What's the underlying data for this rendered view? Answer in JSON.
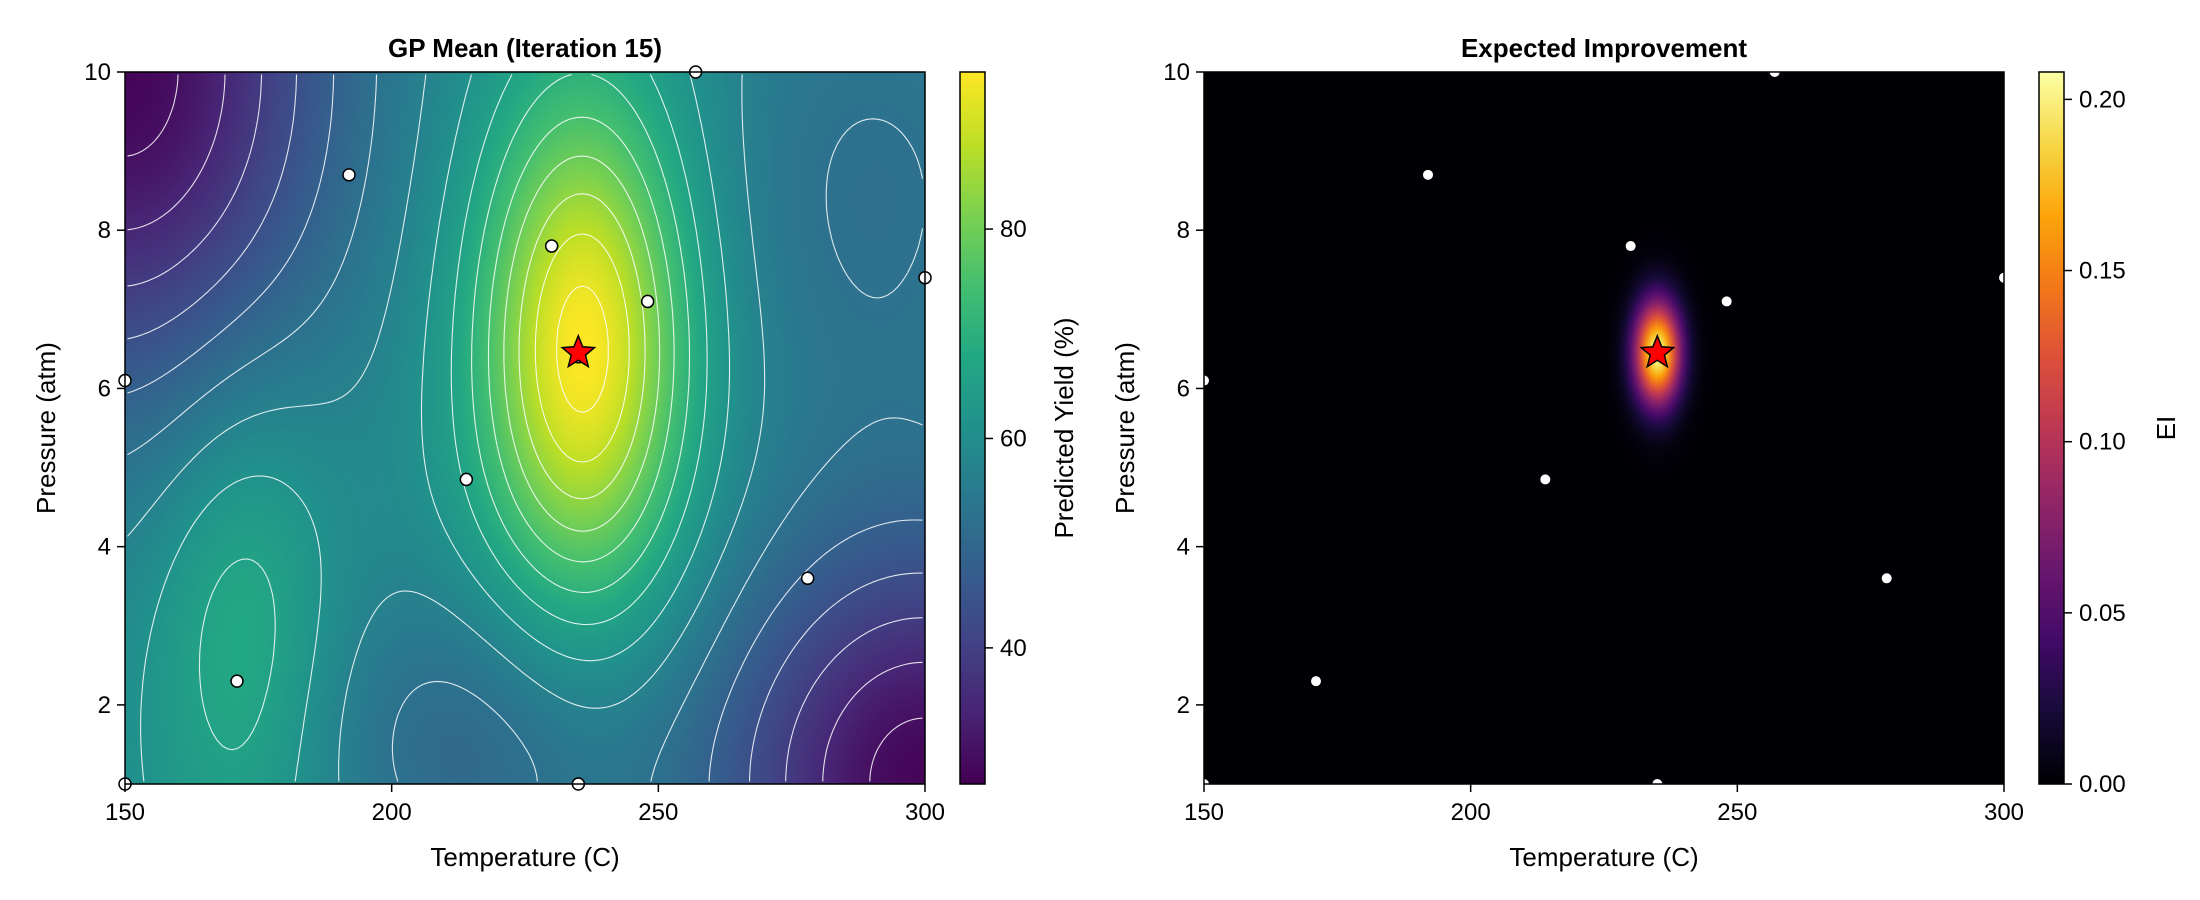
{
  "chart_data": [
    {
      "type": "heatmap",
      "title": "GP Mean (Iteration 15)",
      "xlabel": "Temperature (C)",
      "ylabel": "Pressure (atm)",
      "xlim": [
        150,
        300
      ],
      "ylim": [
        1,
        10
      ],
      "xticks": [
        150,
        200,
        250,
        300
      ],
      "yticks": [
        2,
        4,
        6,
        8,
        10
      ],
      "colormap": "viridis",
      "colorbar": {
        "label": "Predicted Yield (%)",
        "range": [
          27,
          95
        ],
        "ticks": [
          40,
          60,
          80
        ]
      },
      "contours": "white",
      "surface": {
        "baseline": 60,
        "bumps": [
          {
            "center": [
              236,
              6.5
            ],
            "amplitude": 36,
            "spread": [
              14,
              2.3
            ]
          },
          {
            "center": [
              172,
              3.0
            ],
            "amplitude": 10,
            "spread": [
              12,
              2.2
            ]
          },
          {
            "center": [
              150,
              10
            ],
            "amplitude": -32,
            "spread": [
              28,
              3.0
            ]
          },
          {
            "center": [
              300,
              1
            ],
            "amplitude": -32,
            "spread": [
              28,
              2.2
            ]
          },
          {
            "center": [
              215,
              1.5
            ],
            "amplitude": -10,
            "spread": [
              22,
              1.5
            ]
          },
          {
            "center": [
              290,
              8.5
            ],
            "amplitude": -8,
            "spread": [
              25,
              2.5
            ]
          }
        ]
      },
      "observations": [
        {
          "x": 150,
          "y": 1.0
        },
        {
          "x": 150,
          "y": 6.1
        },
        {
          "x": 171,
          "y": 2.3
        },
        {
          "x": 192,
          "y": 8.7
        },
        {
          "x": 214,
          "y": 4.85
        },
        {
          "x": 230,
          "y": 7.8
        },
        {
          "x": 235,
          "y": 1.0
        },
        {
          "x": 235,
          "y": 6.4
        },
        {
          "x": 248,
          "y": 7.1
        },
        {
          "x": 257,
          "y": 10.0
        },
        {
          "x": 278,
          "y": 3.6
        },
        {
          "x": 300,
          "y": 7.4
        }
      ],
      "next_point": {
        "x": 235,
        "y": 6.45,
        "color": "#ff0000"
      }
    },
    {
      "type": "heatmap",
      "title": "Expected Improvement",
      "xlabel": "Temperature (C)",
      "ylabel": "Pressure (atm)",
      "xlim": [
        150,
        300
      ],
      "ylim": [
        1,
        10
      ],
      "xticks": [
        150,
        200,
        250,
        300
      ],
      "yticks": [
        2,
        4,
        6,
        8,
        10
      ],
      "colormap": "inferno",
      "colorbar": {
        "label": "EI",
        "range": [
          0.0,
          0.208
        ],
        "ticks": [
          "0.00",
          "0.05",
          "0.10",
          "0.15",
          "0.20"
        ]
      },
      "surface": {
        "baseline": 0,
        "bumps": [
          {
            "center": [
              235,
              6.45
            ],
            "amplitude": 0.208,
            "spread": [
              3.0,
              0.45
            ]
          }
        ]
      },
      "observations": [
        {
          "x": 150,
          "y": 1.0
        },
        {
          "x": 150,
          "y": 6.1
        },
        {
          "x": 171,
          "y": 2.3
        },
        {
          "x": 192,
          "y": 8.7
        },
        {
          "x": 214,
          "y": 4.85
        },
        {
          "x": 230,
          "y": 7.8
        },
        {
          "x": 235,
          "y": 1.0
        },
        {
          "x": 235,
          "y": 6.4
        },
        {
          "x": 248,
          "y": 7.1
        },
        {
          "x": 257,
          "y": 10.0
        },
        {
          "x": 278,
          "y": 3.6
        },
        {
          "x": 300,
          "y": 7.4
        }
      ],
      "next_point": {
        "x": 235,
        "y": 6.45,
        "color": "#ff0000"
      }
    }
  ]
}
